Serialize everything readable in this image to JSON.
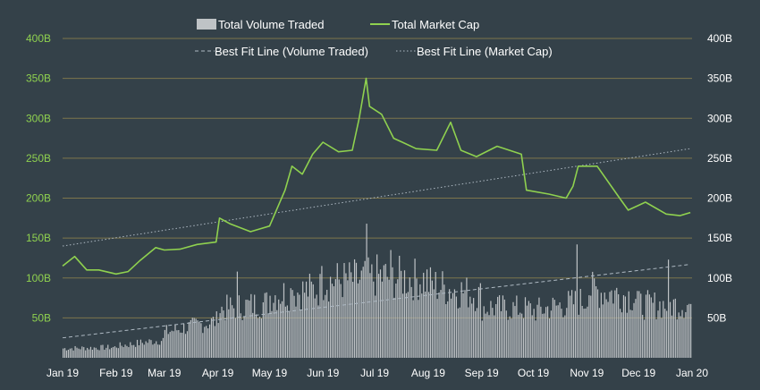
{
  "colors": {
    "background": "#344149",
    "market_cap": "#8fd14f",
    "volume_bar": "#bfc3c6",
    "grid": "#8a7f4d",
    "fit_line": "#aeb9c3",
    "left_tick": "#8fd14f",
    "right_tick": "#ffffff"
  },
  "chart_data": {
    "type": "line",
    "title": "",
    "xlabel": "",
    "ylabel": "",
    "grid": true,
    "legend_position": "top",
    "x_ticks": [
      "Jan 19",
      "Feb 19",
      "Mar 19",
      "Apr 19",
      "May 19",
      "Jun 19",
      "Jul 19",
      "Aug 19",
      "Sep 19",
      "Oct 19",
      "Nov 19",
      "Dec 19",
      "Jan 20"
    ],
    "left_axis": {
      "ticks": [
        "50B",
        "100B",
        "150B",
        "200B",
        "250B",
        "300B",
        "350B",
        "400B"
      ],
      "range_billions": [
        0,
        400
      ]
    },
    "right_axis": {
      "ticks": [
        "50B",
        "100B",
        "150B",
        "200B",
        "250B",
        "300B",
        "350B",
        "400B"
      ],
      "range_billions": [
        0,
        400
      ]
    },
    "legend": {
      "volume": "Total Volume Traded",
      "market_cap": "Total Market Cap",
      "fit_volume": "Best Fit Line (Volume Traded)",
      "fit_market_cap": "Best Fit Line (Market Cap)"
    },
    "series": [
      {
        "name": "Total Market Cap",
        "kind": "line",
        "x": [
          "2019-01-01",
          "2019-01-08",
          "2019-01-15",
          "2019-01-22",
          "2019-02-01",
          "2019-02-08",
          "2019-02-15",
          "2019-02-24",
          "2019-03-01",
          "2019-03-10",
          "2019-03-20",
          "2019-03-31",
          "2019-04-02",
          "2019-04-08",
          "2019-04-20",
          "2019-05-01",
          "2019-05-10",
          "2019-05-14",
          "2019-05-20",
          "2019-05-26",
          "2019-06-01",
          "2019-06-10",
          "2019-06-18",
          "2019-06-22",
          "2019-06-26",
          "2019-06-28",
          "2019-07-05",
          "2019-07-12",
          "2019-07-17",
          "2019-07-25",
          "2019-08-06",
          "2019-08-14",
          "2019-08-20",
          "2019-08-29",
          "2019-09-10",
          "2019-09-24",
          "2019-09-27",
          "2019-10-10",
          "2019-10-20",
          "2019-10-24",
          "2019-10-27",
          "2019-11-07",
          "2019-11-20",
          "2019-11-25",
          "2019-12-05",
          "2019-12-17",
          "2019-12-25",
          "2019-12-31"
        ],
        "values": [
          115,
          127,
          110,
          110,
          105,
          108,
          122,
          138,
          135,
          136,
          142,
          145,
          175,
          168,
          158,
          165,
          210,
          240,
          230,
          255,
          270,
          258,
          260,
          300,
          350,
          315,
          305,
          275,
          270,
          262,
          260,
          295,
          260,
          252,
          265,
          255,
          210,
          205,
          200,
          215,
          240,
          240,
          200,
          185,
          195,
          180,
          178,
          182
        ]
      },
      {
        "name": "Total Volume Traded",
        "kind": "bar",
        "x_range": [
          "2019-01-01",
          "2019-12-31"
        ],
        "monthly_typical_values": [
          12,
          15,
          33,
          62,
          80,
          98,
          105,
          95,
          65,
          60,
          88,
          68
        ],
        "notable_peaks": [
          {
            "x": "2019-04-12",
            "y": 108
          },
          {
            "x": "2019-05-14",
            "y": 85
          },
          {
            "x": "2019-05-31",
            "y": 115
          },
          {
            "x": "2019-06-26",
            "y": 168
          },
          {
            "x": "2019-07-10",
            "y": 135
          },
          {
            "x": "2019-10-26",
            "y": 142
          },
          {
            "x": "2019-12-18",
            "y": 123
          }
        ]
      },
      {
        "name": "Best Fit Line (Market Cap)",
        "kind": "line-dotted",
        "x": [
          "2019-01-01",
          "2019-12-31"
        ],
        "values": [
          140,
          262
        ]
      },
      {
        "name": "Best Fit Line (Volume Traded)",
        "kind": "line-dashed",
        "x": [
          "2019-01-01",
          "2019-12-31"
        ],
        "values": [
          25,
          117
        ]
      }
    ]
  }
}
